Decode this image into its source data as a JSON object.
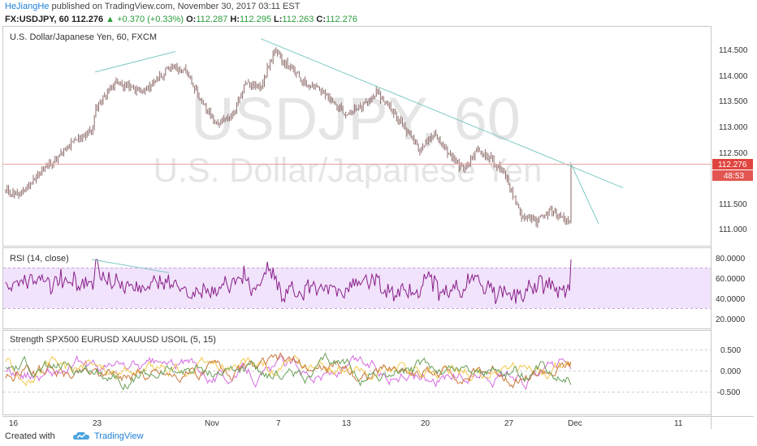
{
  "header": {
    "author": "HeJiangHe",
    "published": "published on TradingView.com, November 30, 2017 03:11 EST",
    "symbol": "FX:USDJPY, 60",
    "last": "112.276",
    "change": "+0.370 (+0.33%)",
    "o_label": "O:",
    "o": "112.287",
    "h_label": "H:",
    "h": "112.295",
    "l_label": "L:",
    "l": "112.263",
    "c_label": "C:",
    "c": "112.276"
  },
  "main": {
    "title": "U.S. Dollar/Japanese Yen, 60, FXCM",
    "watermark_symbol": "USDJPY, 60",
    "watermark_name": "U.S. Dollar/Japanese Yen",
    "price_badge": "112.276",
    "time_badge": "48:53"
  },
  "rsi": {
    "title": "RSI (14, close)"
  },
  "strength": {
    "title": "Strength SPX500 EURUSD XAUUSD USOIL (5, 15)"
  },
  "footer": {
    "created": "Created with",
    "brand": "TradingView"
  },
  "colors": {
    "candle": "#8c6a68",
    "trend": "#7fc9c2",
    "rsi_line": "#8a1f8a",
    "rsi_band": "#f1e3fb",
    "badge_red": "#e0443e",
    "s1": "#d56de0",
    "s2": "#f2c94c",
    "s3": "#c9773c",
    "s4": "#6aa05a"
  },
  "chart_data": [
    {
      "type": "candlestick",
      "title": "U.S. Dollar/Japanese Yen, 60, FXCM",
      "x_ticks": [
        "16",
        "23",
        "Nov",
        "7",
        "13",
        "20",
        "27",
        "Dec",
        "11"
      ],
      "y_ticks": [
        "114.500",
        "114.000",
        "113.500",
        "113.000",
        "112.500",
        "112.276",
        "111.500",
        "111.000"
      ],
      "ylim": [
        110.8,
        115.0
      ],
      "last_price": 112.276,
      "waypoints": {
        "time_index": [
          0,
          10,
          25,
          35,
          45,
          60,
          62,
          75,
          85,
          95,
          105,
          115,
          125,
          135,
          145,
          155,
          165,
          175,
          185,
          195,
          205,
          215,
          225,
          235,
          245,
          255,
          265,
          275,
          285,
          295,
          305,
          315,
          325,
          335,
          345,
          355,
          365,
          375,
          385
        ],
        "close": [
          111.8,
          111.7,
          112.2,
          112.4,
          112.7,
          113.0,
          113.4,
          113.9,
          113.8,
          113.7,
          114.0,
          114.2,
          114.1,
          113.5,
          113.1,
          113.2,
          113.9,
          113.8,
          114.5,
          114.2,
          113.9,
          113.8,
          113.5,
          113.3,
          113.4,
          113.7,
          113.4,
          113.0,
          112.6,
          112.9,
          112.5,
          112.2,
          112.6,
          112.4,
          112.0,
          111.3,
          111.2,
          111.4,
          111.2
        ]
      },
      "trendlines": [
        {
          "from": [
            "23",
            114.1
          ],
          "to": [
            "31",
            114.5
          ]
        },
        {
          "from": [
            "Nov 6",
            114.75
          ],
          "to": [
            "Dec 6",
            111.85
          ]
        },
        {
          "from": [
            "Nov 29",
            112.35
          ],
          "to": [
            "Dec 3",
            111.15
          ]
        }
      ]
    },
    {
      "type": "line",
      "title": "RSI (14, close)",
      "y_ticks": [
        "80.0000",
        "60.0000",
        "40.0000",
        "20.0000"
      ],
      "ylim": [
        10,
        90
      ],
      "band": [
        30,
        70
      ]
    },
    {
      "type": "line",
      "title": "Strength SPX500 EURUSD XAUUSD USOIL (5, 15)",
      "y_ticks": [
        "0.500",
        "0.000",
        "-0.500"
      ],
      "ylim": [
        -0.9,
        0.9
      ],
      "series": [
        {
          "name": "SPX500",
          "color": "#d56de0"
        },
        {
          "name": "EURUSD",
          "color": "#f2c94c"
        },
        {
          "name": "XAUUSD",
          "color": "#c9773c"
        },
        {
          "name": "USOIL",
          "color": "#6aa05a"
        }
      ]
    }
  ]
}
